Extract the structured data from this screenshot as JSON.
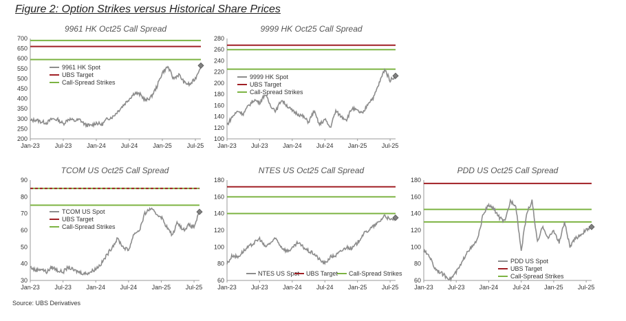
{
  "figure_title": "Figure 2: Option Strikes versus Historical Share Prices",
  "source": "Source: UBS Derivatives",
  "colors": {
    "spot": "#8c8c8c",
    "target": "#a01f24",
    "strike": "#7cb342",
    "marker": "#808080"
  },
  "chart_data": [
    {
      "type": "line",
      "title": "9961 HK Oct25 Call Spread",
      "x_ticks": [
        "Jan-23",
        "Jul-23",
        "Jan-24",
        "Jul-24",
        "Jan-25",
        "Jul-25"
      ],
      "ylim": [
        200,
        700
      ],
      "y_ticks": [
        "200",
        "250",
        "300",
        "350",
        "400",
        "450",
        "500",
        "550",
        "600",
        "650",
        "700"
      ],
      "legend": [
        "9961 HK Spot",
        "UBS Target",
        "Call-Spread Strikes"
      ],
      "legend_position": "upper-left",
      "ubs_target": 660,
      "strikes": [
        595,
        690
      ],
      "last_spot": 565,
      "series": [
        {
          "name": "9961 HK Spot",
          "months": [
            0,
            1,
            2,
            3,
            4,
            5,
            6,
            7,
            8,
            9,
            10,
            11,
            12,
            13,
            14,
            15,
            16,
            17,
            18,
            19,
            20,
            21,
            22,
            23,
            24,
            25,
            26,
            27,
            28,
            29,
            30,
            31
          ],
          "values": [
            290,
            295,
            285,
            280,
            300,
            295,
            275,
            300,
            290,
            295,
            270,
            265,
            280,
            270,
            300,
            310,
            340,
            370,
            400,
            430,
            420,
            390,
            410,
            460,
            530,
            560,
            500,
            520,
            480,
            470,
            500,
            565
          ]
        }
      ]
    },
    {
      "type": "line",
      "title": "9999 HK Oct25 Call Spread",
      "x_ticks": [
        "Jan-23",
        "Jul-23",
        "Jan-24",
        "Jul-24",
        "Jan-25",
        "Jul-25"
      ],
      "ylim": [
        100,
        280
      ],
      "y_ticks": [
        "100",
        "120",
        "140",
        "160",
        "180",
        "200",
        "220",
        "240",
        "260",
        "280"
      ],
      "legend": [
        "9999 HK Spot",
        "UBS Target",
        "Call-Spread Strikes"
      ],
      "legend_position": "middle-left",
      "ubs_target": 268,
      "strikes": [
        225,
        260
      ],
      "last_spot": 213,
      "series": [
        {
          "name": "9999 HK Spot",
          "months": [
            0,
            1,
            2,
            3,
            4,
            5,
            6,
            7,
            8,
            9,
            10,
            11,
            12,
            13,
            14,
            15,
            16,
            17,
            18,
            19,
            20,
            21,
            22,
            23,
            24,
            25,
            26,
            27,
            28,
            29,
            30,
            31
          ],
          "values": [
            125,
            140,
            150,
            145,
            160,
            170,
            165,
            180,
            160,
            150,
            170,
            160,
            150,
            145,
            140,
            130,
            150,
            125,
            135,
            120,
            150,
            140,
            135,
            155,
            150,
            145,
            165,
            175,
            200,
            225,
            205,
            213
          ]
        }
      ]
    },
    {
      "type": "line",
      "title": "TCOM US Oct25 Call Spread",
      "x_ticks": [
        "Jan-23",
        "Jul-23",
        "Jan-24",
        "Jul-24",
        "Jan-25",
        "Jul-25"
      ],
      "ylim": [
        30,
        90
      ],
      "y_ticks": [
        "30",
        "40",
        "50",
        "60",
        "70",
        "80",
        "90"
      ],
      "legend": [
        "TCOM US Spot",
        "UBS Target",
        "Call-Spread Strikes"
      ],
      "legend_position": "middle-left",
      "ubs_target": 85,
      "strikes": [
        75,
        85
      ],
      "last_spot": 71,
      "series": [
        {
          "name": "TCOM US Spot",
          "months": [
            0,
            1,
            2,
            3,
            4,
            5,
            6,
            7,
            8,
            9,
            10,
            11,
            12,
            13,
            14,
            15,
            16,
            17,
            18,
            19,
            20,
            21,
            22,
            23,
            24,
            25,
            26,
            27,
            28,
            29,
            30,
            31
          ],
          "values": [
            38,
            36,
            37,
            35,
            38,
            36,
            35,
            38,
            36,
            35,
            34,
            35,
            37,
            40,
            45,
            50,
            55,
            50,
            48,
            58,
            60,
            70,
            73,
            70,
            68,
            62,
            57,
            65,
            60,
            63,
            62,
            71
          ]
        }
      ]
    },
    {
      "type": "line",
      "title": "NTES US Oct25 Call Spread",
      "x_ticks": [
        "Jan-23",
        "Jul-23",
        "Jan-24",
        "Jul-24",
        "Jan-25",
        "Jul-25"
      ],
      "ylim": [
        60,
        180
      ],
      "y_ticks": [
        "60",
        "80",
        "100",
        "120",
        "140",
        "160",
        "180"
      ],
      "legend": [
        "NTES US Spot",
        "UBS Target",
        "Call-Spread Strikes"
      ],
      "legend_position": "bottom-right",
      "ubs_target": 172,
      "strikes": [
        140,
        160
      ],
      "last_spot": 135,
      "series": [
        {
          "name": "NTES US Spot",
          "months": [
            0,
            1,
            2,
            3,
            4,
            5,
            6,
            7,
            8,
            9,
            10,
            11,
            12,
            13,
            14,
            15,
            16,
            17,
            18,
            19,
            20,
            21,
            22,
            23,
            24,
            25,
            26,
            27,
            28,
            29,
            30,
            31
          ],
          "values": [
            80,
            90,
            88,
            95,
            100,
            105,
            110,
            100,
            105,
            110,
            100,
            95,
            98,
            105,
            100,
            95,
            92,
            85,
            80,
            88,
            90,
            95,
            100,
            98,
            105,
            115,
            120,
            125,
            130,
            138,
            132,
            135
          ]
        }
      ]
    },
    {
      "type": "line",
      "title": "PDD US Oct25 Call Spread",
      "x_ticks": [
        "Jan-23",
        "Jul-23",
        "Jan-24",
        "Jul-24",
        "Jan-25",
        "Jul-25"
      ],
      "ylim": [
        60,
        180
      ],
      "y_ticks": [
        "60",
        "80",
        "100",
        "120",
        "140",
        "160",
        "180"
      ],
      "legend": [
        "PDD US Spot",
        "UBS Target",
        "Call-Spread Strikes"
      ],
      "legend_position": "bottom-left",
      "ubs_target": 176,
      "strikes": [
        130,
        145
      ],
      "last_spot": 124,
      "series": [
        {
          "name": "PDD US Spot",
          "months": [
            0,
            1,
            2,
            3,
            4,
            5,
            6,
            7,
            8,
            9,
            10,
            11,
            12,
            13,
            14,
            15,
            16,
            17,
            18,
            19,
            20,
            21,
            22,
            23,
            24,
            25,
            26,
            27,
            28,
            29,
            30,
            31
          ],
          "values": [
            95,
            90,
            75,
            70,
            65,
            62,
            70,
            80,
            95,
            100,
            110,
            140,
            150,
            145,
            135,
            130,
            155,
            150,
            95,
            140,
            155,
            105,
            125,
            110,
            120,
            105,
            130,
            100,
            110,
            115,
            120,
            124
          ]
        }
      ]
    }
  ]
}
